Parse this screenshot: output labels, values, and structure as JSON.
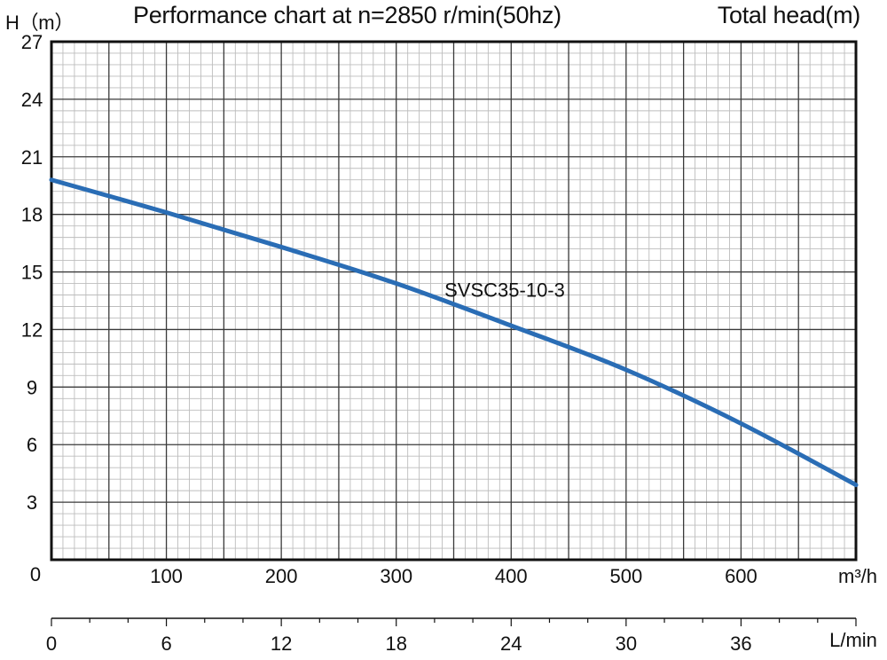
{
  "header": {
    "y_axis_label": "H（m）",
    "title": "Performance chart at n=2850 r/min(50hz)",
    "head_label": "Total head(m)"
  },
  "colors": {
    "curve": "#2a6db5",
    "grid_major": "#3a3a3a",
    "grid_minor": "#bdbdbd"
  },
  "chart_data": {
    "type": "line",
    "title": "Performance chart at n=2850 r/min(50hz)",
    "ylabel": "H（m）",
    "y2label": "Total head(m)",
    "xlabel": "m³/h",
    "x2label": "L/min",
    "ylim": [
      0,
      27
    ],
    "xlim": [
      0,
      700
    ],
    "x2lim": [
      0,
      42
    ],
    "grid": true,
    "yticks": [
      0,
      3,
      6,
      9,
      12,
      15,
      18,
      21,
      24,
      27
    ],
    "xticks": [
      0,
      100,
      200,
      300,
      400,
      500,
      600
    ],
    "x2ticks": [
      0,
      6,
      12,
      18,
      24,
      30,
      36
    ],
    "series": [
      {
        "name": "SVSC35-10-3",
        "x": [
          0,
          100,
          200,
          300,
          400,
          500,
          600,
          700
        ],
        "y": [
          19.8,
          18.1,
          16.3,
          14.4,
          12.2,
          9.9,
          7.1,
          3.9
        ]
      }
    ]
  }
}
